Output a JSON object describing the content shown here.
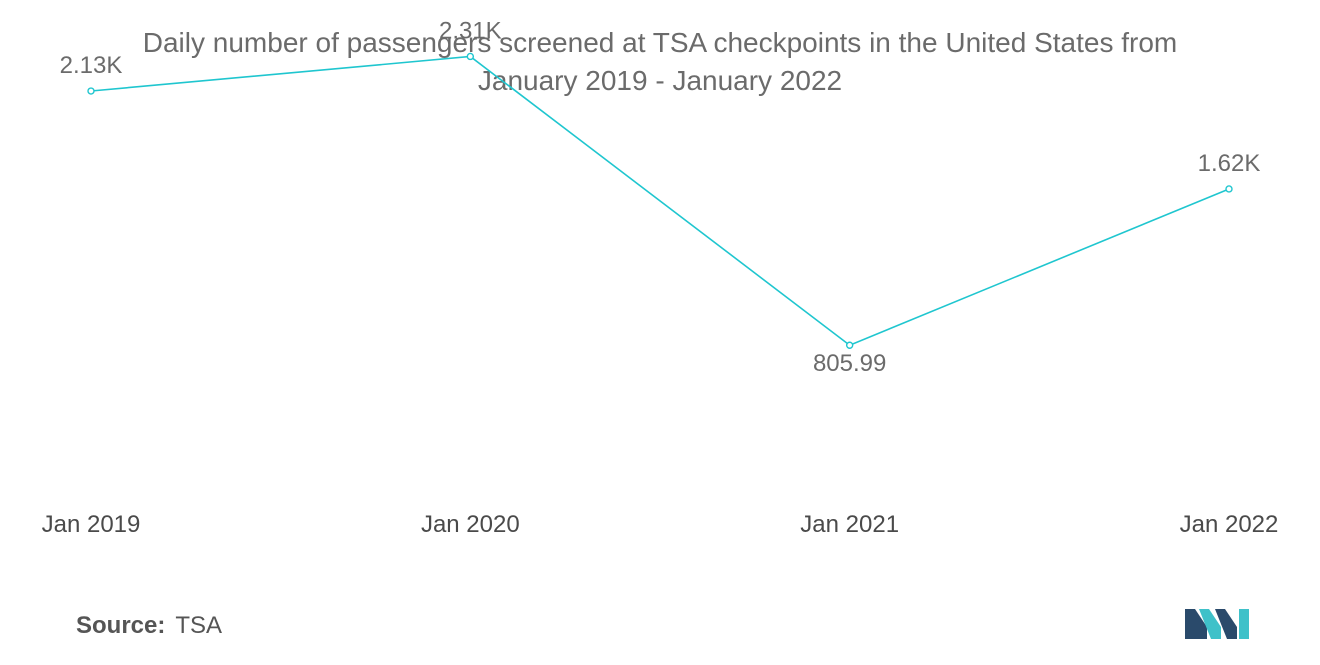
{
  "title_lines": [
    "Daily number of passengers screened at TSA checkpoints in the United States from",
    "January 2019 - January 2022"
  ],
  "source": {
    "label": "Source:",
    "value": "TSA"
  },
  "colors": {
    "line": "#1fc6cf",
    "logo_dark": "#2a4a6b",
    "logo_teal": "#3fc1c9"
  },
  "chart_data": {
    "type": "line",
    "title": "Daily number of passengers screened at TSA checkpoints in the United States from January 2019 - January 2022",
    "categories": [
      "Jan 2019",
      "Jan 2020",
      "Jan 2021",
      "Jan 2022"
    ],
    "series": [
      {
        "name": "Passengers screened",
        "values": [
          2130,
          2310,
          805.99,
          1620
        ],
        "labels": [
          "2.13K",
          "2.31K",
          "805.99",
          "1.62K"
        ],
        "label_positions": [
          "above",
          "above",
          "below",
          "above"
        ]
      }
    ],
    "ylim": [
      0,
      2500
    ],
    "grid": false,
    "legend": "none"
  }
}
